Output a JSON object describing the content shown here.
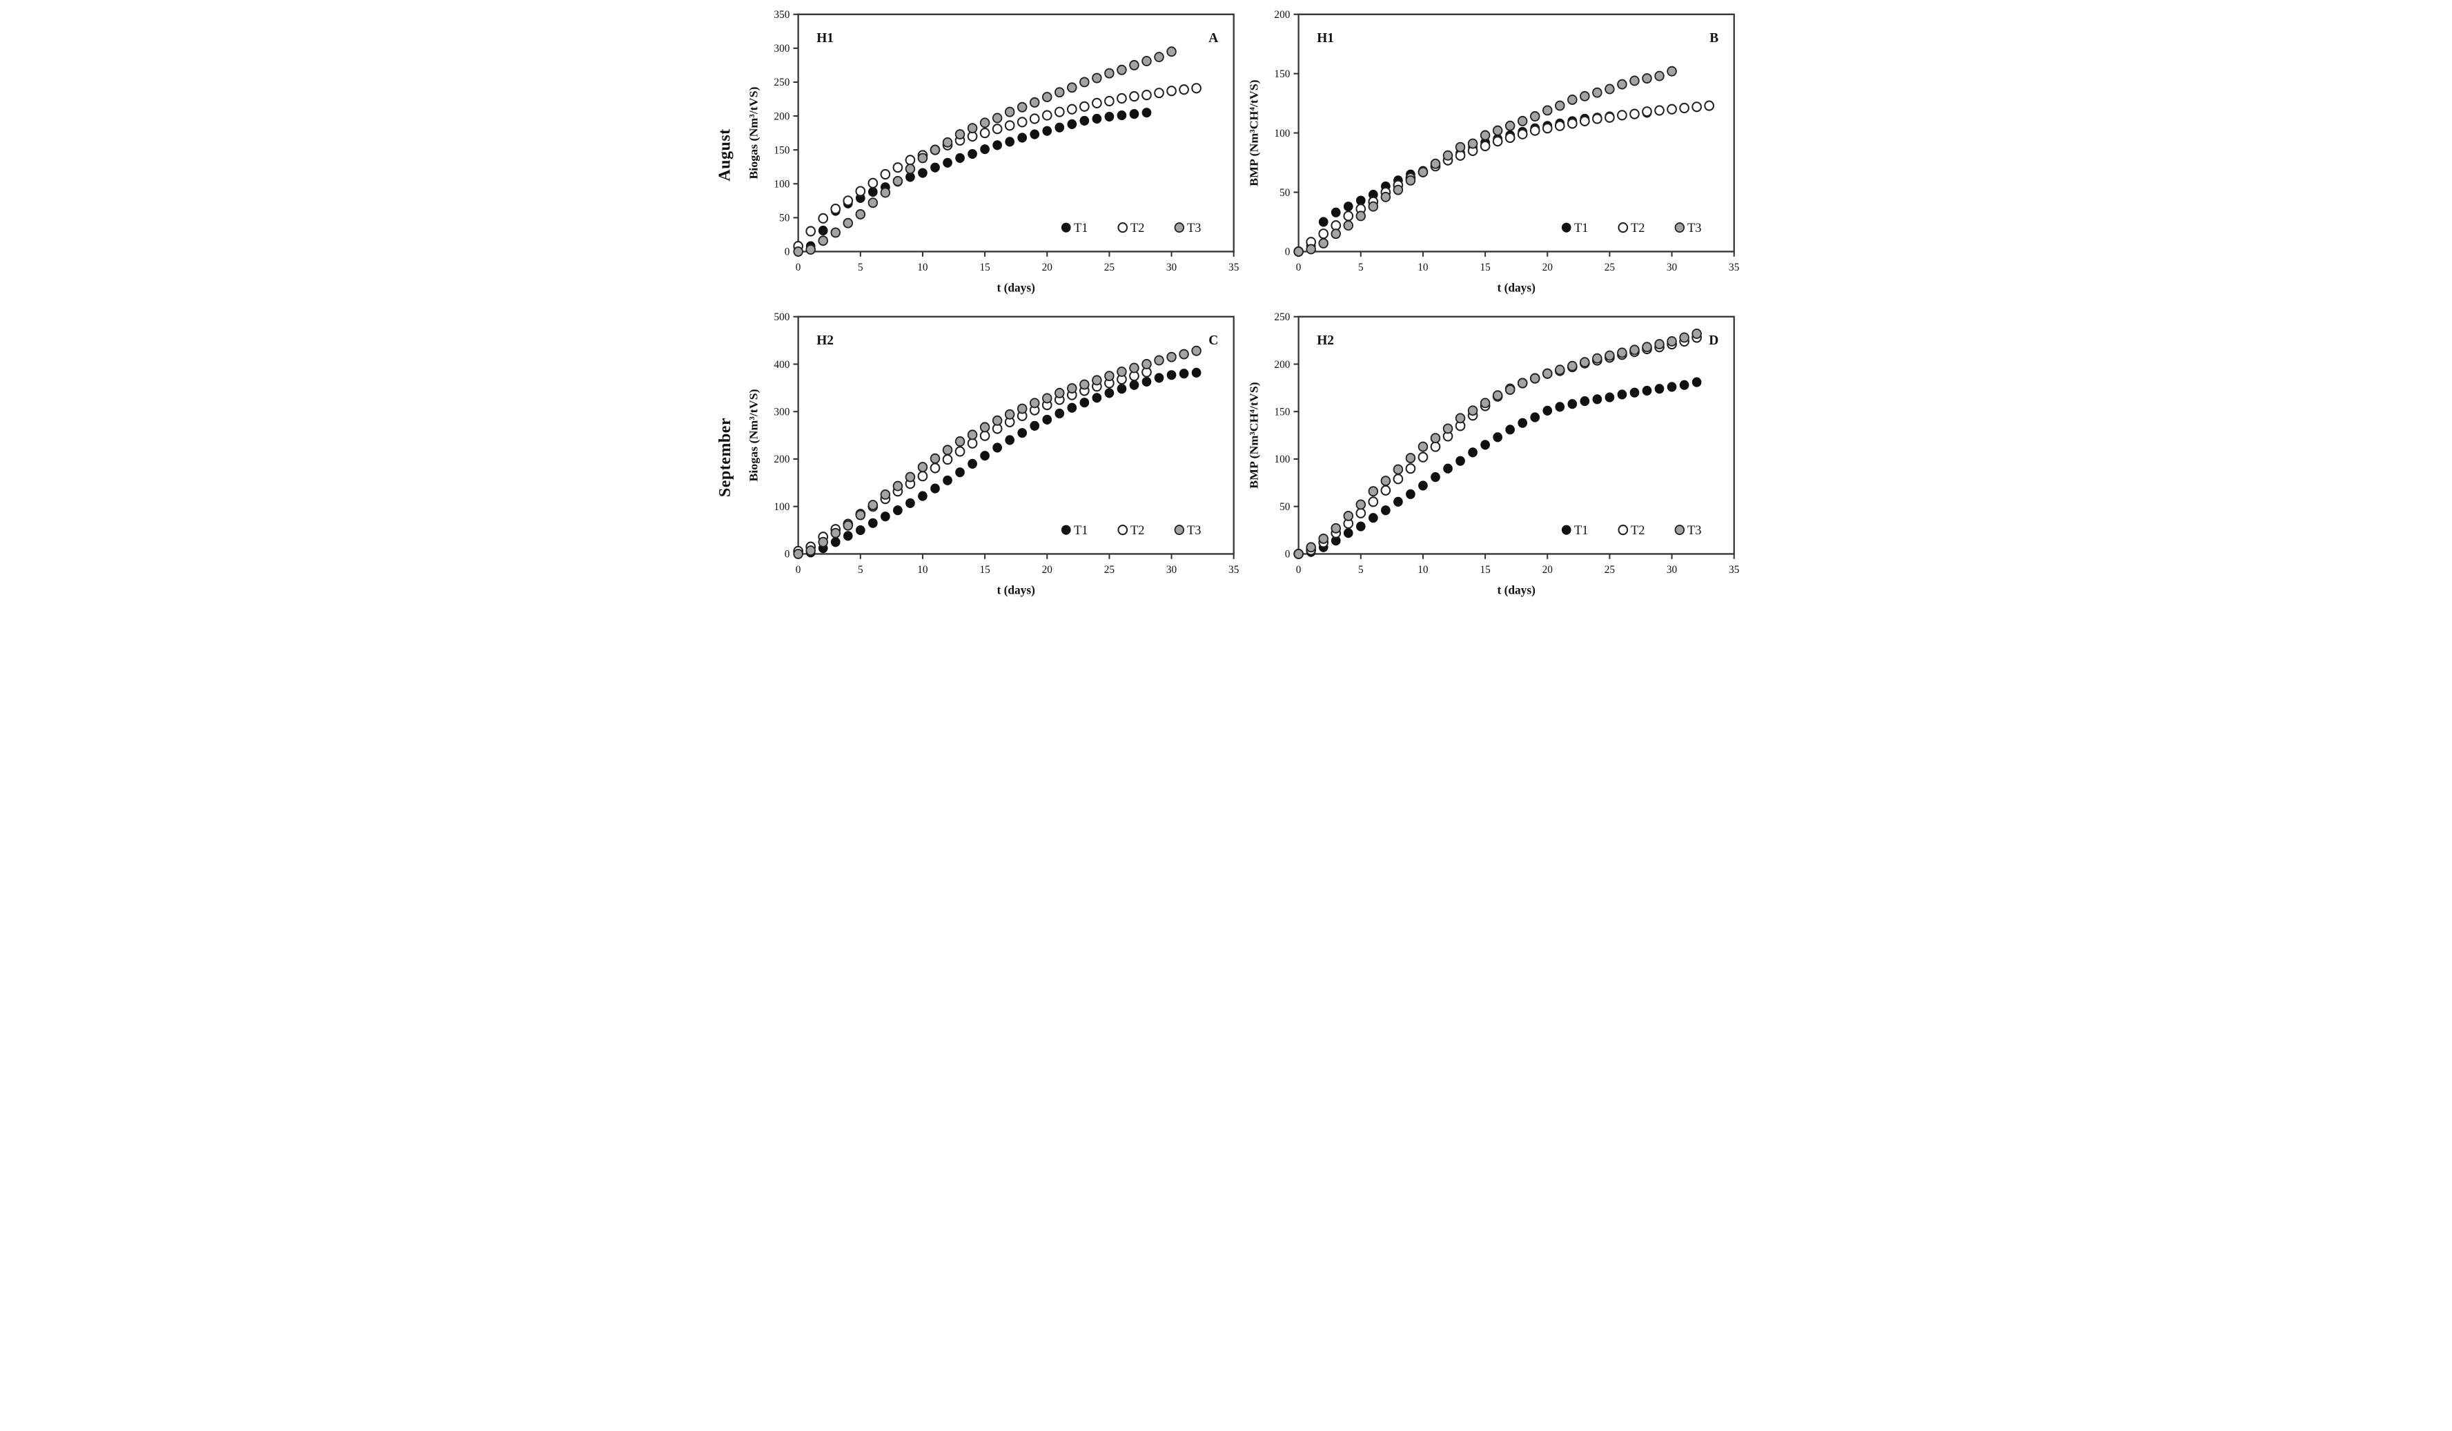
{
  "figure": {
    "rows": [
      {
        "month": "August"
      },
      {
        "month": "September"
      }
    ]
  },
  "axis": {
    "xlabel": "t (days)",
    "xticks": [
      0,
      5,
      10,
      15,
      20,
      25,
      30,
      35
    ],
    "xmax": 35
  },
  "legend": {
    "items": [
      "T1",
      "T2",
      "T3"
    ]
  },
  "style": {
    "t1_fill": "#111111",
    "t2_fill": "#ffffff",
    "t3_fill": "#a3a3a3",
    "marker_stroke": "#222222",
    "axis_color": "#333333",
    "text_color": "#111111"
  },
  "chart_data": [
    {
      "type": "scatter",
      "condition_label": "H1",
      "panel_label": "A",
      "row_label": "August",
      "ylabel": "Biogas (Nm³/tVS)",
      "xlabel": "t (days)",
      "ylim": [
        0,
        350
      ],
      "ytick_step": 50,
      "xlim": [
        0,
        35
      ],
      "grid": false,
      "legend_position": "bottom-right",
      "series": [
        {
          "name": "T1",
          "t": [
            0,
            1,
            2,
            3,
            4,
            5,
            6,
            7,
            8,
            9,
            10,
            11,
            12,
            13,
            14,
            15,
            16,
            17,
            18,
            19,
            20,
            21,
            22,
            23,
            24,
            25,
            26,
            27,
            28
          ],
          "y": [
            0,
            8,
            31,
            60,
            71,
            79,
            88,
            95,
            103,
            110,
            116,
            124,
            131,
            138,
            144,
            151,
            157,
            162,
            168,
            173,
            178,
            183,
            188,
            193,
            196,
            199,
            201,
            203,
            205
          ]
        },
        {
          "name": "T2",
          "t": [
            0,
            1,
            2,
            3,
            4,
            5,
            6,
            7,
            8,
            9,
            10,
            11,
            12,
            13,
            14,
            15,
            16,
            17,
            18,
            19,
            20,
            21,
            22,
            23,
            24,
            25,
            26,
            27,
            28,
            29,
            30,
            31,
            32
          ],
          "y": [
            8,
            30,
            49,
            63,
            75,
            89,
            101,
            114,
            124,
            135,
            142,
            150,
            157,
            164,
            170,
            175,
            181,
            186,
            191,
            196,
            201,
            206,
            210,
            214,
            219,
            222,
            226,
            229,
            231,
            234,
            237,
            239,
            241
          ]
        },
        {
          "name": "T3",
          "t": [
            0,
            1,
            2,
            3,
            4,
            5,
            6,
            7,
            8,
            9,
            10,
            11,
            12,
            13,
            14,
            15,
            16,
            17,
            18,
            19,
            20,
            21,
            22,
            23,
            24,
            25,
            26,
            27,
            28,
            29,
            30
          ],
          "y": [
            0,
            3,
            16,
            28,
            42,
            55,
            72,
            87,
            104,
            122,
            138,
            150,
            161,
            173,
            182,
            190,
            197,
            206,
            213,
            220,
            228,
            235,
            242,
            250,
            256,
            263,
            268,
            275,
            281,
            287,
            295
          ]
        }
      ]
    },
    {
      "type": "scatter",
      "condition_label": "H1",
      "panel_label": "B",
      "row_label": "August",
      "ylabel": "BMP (Nm³CH⁴/tVS)",
      "xlabel": "t (days)",
      "ylim": [
        0,
        200
      ],
      "ytick_step": 50,
      "xlim": [
        0,
        35
      ],
      "grid": false,
      "legend_position": "bottom-right",
      "series": [
        {
          "name": "T1",
          "t": [
            0,
            1,
            2,
            3,
            4,
            5,
            6,
            7,
            8,
            9,
            10,
            11,
            12,
            13,
            14,
            15,
            16,
            17,
            18,
            19,
            20,
            21,
            22,
            23,
            24,
            25,
            26,
            27,
            28
          ],
          "y": [
            0,
            5,
            25,
            33,
            38,
            43,
            48,
            55,
            60,
            65,
            68,
            73,
            78,
            83,
            88,
            92,
            95,
            98,
            101,
            104,
            106,
            108,
            110,
            112,
            113,
            114,
            115,
            116,
            117
          ]
        },
        {
          "name": "T2",
          "t": [
            0,
            1,
            2,
            3,
            4,
            5,
            6,
            7,
            8,
            9,
            10,
            11,
            12,
            13,
            14,
            15,
            16,
            17,
            18,
            19,
            20,
            21,
            22,
            23,
            24,
            25,
            26,
            27,
            28,
            29,
            30,
            31,
            32,
            33
          ],
          "y": [
            0,
            8,
            15,
            22,
            30,
            36,
            42,
            50,
            56,
            62,
            67,
            72,
            77,
            81,
            85,
            89,
            93,
            96,
            99,
            102,
            104,
            106,
            108,
            110,
            112,
            113,
            115,
            116,
            118,
            119,
            120,
            121,
            122,
            123
          ]
        },
        {
          "name": "T3",
          "t": [
            0,
            1,
            2,
            3,
            4,
            5,
            6,
            7,
            8,
            9,
            10,
            11,
            12,
            13,
            14,
            15,
            16,
            17,
            18,
            19,
            20,
            21,
            22,
            23,
            24,
            25,
            26,
            27,
            28,
            29,
            30
          ],
          "y": [
            0,
            2,
            7,
            15,
            22,
            30,
            38,
            46,
            52,
            60,
            67,
            74,
            81,
            88,
            91,
            98,
            102,
            106,
            110,
            114,
            119,
            123,
            128,
            131,
            134,
            137,
            141,
            144,
            146,
            148,
            152
          ]
        }
      ]
    },
    {
      "type": "scatter",
      "condition_label": "H2",
      "panel_label": "C",
      "row_label": "September",
      "ylabel": "Biogas (Nm³/tVS)",
      "xlabel": "t (days)",
      "ylim": [
        0,
        500
      ],
      "ytick_step": 100,
      "xlim": [
        0,
        35
      ],
      "grid": false,
      "legend_position": "bottom-right",
      "series": [
        {
          "name": "T1",
          "t": [
            0,
            1,
            2,
            3,
            4,
            5,
            6,
            7,
            8,
            9,
            10,
            11,
            12,
            13,
            14,
            15,
            16,
            17,
            18,
            19,
            20,
            21,
            22,
            23,
            24,
            25,
            26,
            27,
            28,
            29,
            30,
            31,
            32
          ],
          "y": [
            0,
            3,
            12,
            25,
            38,
            50,
            65,
            79,
            92,
            107,
            122,
            138,
            155,
            172,
            190,
            207,
            224,
            240,
            255,
            270,
            283,
            296,
            308,
            319,
            329,
            339,
            348,
            356,
            363,
            371,
            377,
            380,
            382
          ]
        },
        {
          "name": "T2",
          "t": [
            0,
            1,
            2,
            3,
            4,
            5,
            6,
            7,
            8,
            9,
            10,
            11,
            12,
            13,
            14,
            15,
            16,
            17,
            18,
            19,
            20,
            21,
            22,
            23,
            24,
            25,
            26,
            27,
            28
          ],
          "y": [
            6,
            15,
            36,
            52,
            63,
            84,
            100,
            116,
            132,
            148,
            164,
            181,
            199,
            216,
            233,
            249,
            264,
            278,
            291,
            303,
            314,
            325,
            335,
            344,
            353,
            360,
            368,
            375,
            383
          ]
        },
        {
          "name": "T3",
          "t": [
            0,
            1,
            2,
            3,
            4,
            5,
            6,
            7,
            8,
            9,
            10,
            11,
            12,
            13,
            14,
            15,
            16,
            17,
            18,
            19,
            20,
            21,
            22,
            23,
            24,
            25,
            26,
            27,
            28,
            29,
            30,
            31,
            32
          ],
          "y": [
            0,
            7,
            25,
            44,
            60,
            82,
            103,
            125,
            143,
            162,
            183,
            201,
            219,
            237,
            251,
            267,
            281,
            294,
            306,
            318,
            328,
            339,
            349,
            357,
            366,
            375,
            384,
            392,
            400,
            408,
            415,
            421,
            428
          ]
        }
      ]
    },
    {
      "type": "scatter",
      "condition_label": "H2",
      "panel_label": "D",
      "row_label": "September",
      "ylabel": "BMP (Nm³CH⁴/tVS)",
      "xlabel": "t (days)",
      "ylim": [
        0,
        250
      ],
      "ytick_step": 50,
      "xlim": [
        0,
        35
      ],
      "grid": false,
      "legend_position": "bottom-right",
      "series": [
        {
          "name": "T1",
          "t": [
            0,
            1,
            2,
            3,
            4,
            5,
            6,
            7,
            8,
            9,
            10,
            11,
            12,
            13,
            14,
            15,
            16,
            17,
            18,
            19,
            20,
            21,
            22,
            23,
            24,
            25,
            26,
            27,
            28,
            29,
            30,
            31,
            32
          ],
          "y": [
            0,
            2,
            7,
            14,
            22,
            29,
            38,
            46,
            55,
            63,
            72,
            81,
            90,
            98,
            107,
            115,
            123,
            131,
            138,
            144,
            151,
            155,
            158,
            161,
            163,
            165,
            168,
            170,
            172,
            174,
            176,
            178,
            181
          ]
        },
        {
          "name": "T2",
          "t": [
            0,
            1,
            2,
            3,
            4,
            5,
            6,
            7,
            8,
            9,
            10,
            11,
            12,
            13,
            14,
            15,
            16,
            17,
            18,
            19,
            20,
            21,
            22,
            23,
            24,
            25,
            26,
            27,
            28,
            29,
            30,
            31,
            32
          ],
          "y": [
            0,
            4,
            12,
            22,
            32,
            43,
            55,
            67,
            79,
            90,
            102,
            113,
            124,
            135,
            146,
            156,
            166,
            174,
            180,
            185,
            190,
            193,
            197,
            201,
            204,
            207,
            210,
            213,
            216,
            218,
            221,
            224,
            228
          ]
        },
        {
          "name": "T3",
          "t": [
            0,
            1,
            2,
            3,
            4,
            5,
            6,
            7,
            8,
            9,
            10,
            11,
            12,
            13,
            14,
            15,
            16,
            17,
            18,
            19,
            20,
            21,
            22,
            23,
            24,
            25,
            26,
            27,
            28,
            29,
            30,
            31,
            32
          ],
          "y": [
            0,
            7,
            16,
            27,
            40,
            52,
            66,
            77,
            89,
            101,
            113,
            122,
            132,
            143,
            151,
            159,
            167,
            173,
            180,
            185,
            190,
            194,
            198,
            202,
            206,
            209,
            212,
            215,
            218,
            221,
            224,
            228,
            232
          ]
        }
      ]
    }
  ]
}
